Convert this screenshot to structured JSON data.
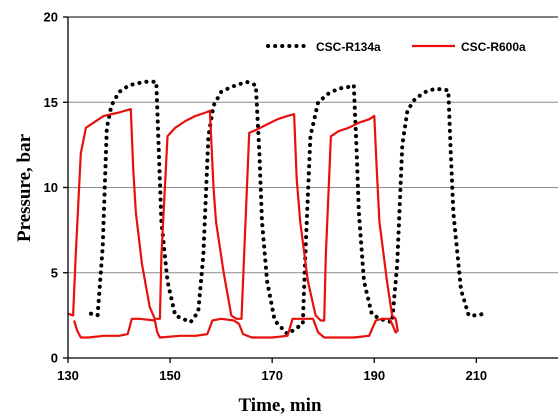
{
  "chart_data": {
    "type": "line",
    "title": "",
    "xlabel": "Time, min",
    "ylabel": "Pressure, bar",
    "xlim": [
      130,
      226
    ],
    "ylim": [
      0,
      20
    ],
    "xticks": [
      130,
      150,
      170,
      190,
      210
    ],
    "yticks": [
      0,
      5,
      10,
      15,
      20
    ],
    "grid": "horizontal",
    "legend_position": "top-right",
    "series": [
      {
        "name": "CSC-R134a",
        "color": "#000000",
        "style": "dotted",
        "points": [
          [
            134.5,
            2.6
          ],
          [
            135.8,
            2.5
          ],
          [
            136.8,
            6.5
          ],
          [
            137.6,
            13.5
          ],
          [
            138.5,
            14.8
          ],
          [
            140,
            15.6
          ],
          [
            142,
            16.0
          ],
          [
            145,
            16.2
          ],
          [
            147.3,
            16.2
          ],
          [
            147.8,
            12.0
          ],
          [
            148.3,
            8.0
          ],
          [
            149.5,
            4.5
          ],
          [
            151,
            2.5
          ],
          [
            154,
            2.1
          ],
          [
            155.5,
            2.7
          ],
          [
            156.5,
            6.0
          ],
          [
            157.5,
            13.0
          ],
          [
            158.5,
            14.8
          ],
          [
            160,
            15.6
          ],
          [
            162,
            15.9
          ],
          [
            165,
            16.2
          ],
          [
            166.8,
            16.0
          ],
          [
            167.5,
            12.0
          ],
          [
            168,
            8.0
          ],
          [
            169,
            4.5
          ],
          [
            170.5,
            2.2
          ],
          [
            173,
            1.4
          ],
          [
            176,
            2.0
          ],
          [
            176.5,
            6.0
          ],
          [
            177.5,
            13.0
          ],
          [
            179,
            15.0
          ],
          [
            181,
            15.5
          ],
          [
            183,
            15.8
          ],
          [
            185,
            15.9
          ],
          [
            186,
            16.0
          ],
          [
            186.5,
            12.5
          ],
          [
            187,
            8.5
          ],
          [
            188,
            4.5
          ],
          [
            189.5,
            2.6
          ],
          [
            191,
            2.3
          ],
          [
            193.5,
            2.1
          ],
          [
            194.5,
            5.5
          ],
          [
            195.5,
            12.5
          ],
          [
            196.5,
            14.5
          ],
          [
            198,
            15.2
          ],
          [
            200,
            15.6
          ],
          [
            202,
            15.8
          ],
          [
            204.5,
            15.7
          ],
          [
            205,
            12.0
          ],
          [
            205.5,
            8.5
          ],
          [
            207,
            4.0
          ],
          [
            208.5,
            2.5
          ],
          [
            210,
            2.5
          ],
          [
            211.5,
            2.6
          ],
          [
            212,
            2.5
          ]
        ]
      },
      {
        "name": "CSC-R600a",
        "color": "#e8100c",
        "style": "solid",
        "points": [
          [
            130,
            2.6
          ],
          [
            131,
            2.5
          ],
          [
            131.5,
            6.0
          ],
          [
            132.5,
            12.0
          ],
          [
            133.5,
            13.5
          ],
          [
            135,
            13.8
          ],
          [
            137,
            14.2
          ],
          [
            140,
            14.4
          ],
          [
            142.3,
            14.6
          ],
          [
            142.8,
            11.0
          ],
          [
            143.3,
            8.5
          ],
          [
            144.5,
            5.5
          ],
          [
            146,
            3.0
          ],
          [
            147,
            2.3
          ],
          [
            148,
            2.3
          ],
          [
            148.3,
            6.0
          ],
          [
            149.5,
            13.0
          ],
          [
            151,
            13.5
          ],
          [
            153,
            13.9
          ],
          [
            155,
            14.2
          ],
          [
            157,
            14.4
          ],
          [
            157.8,
            14.5
          ],
          [
            158.5,
            10.0
          ],
          [
            159,
            8.0
          ],
          [
            160.5,
            5.0
          ],
          [
            162,
            2.5
          ],
          [
            163,
            2.3
          ],
          [
            164,
            2.3
          ],
          [
            164.5,
            6.0
          ],
          [
            165.5,
            13.2
          ],
          [
            167,
            13.4
          ],
          [
            169,
            13.7
          ],
          [
            171,
            14.0
          ],
          [
            173,
            14.2
          ],
          [
            174.3,
            14.3
          ],
          [
            174.8,
            10.5
          ],
          [
            175.5,
            8.0
          ],
          [
            177,
            4.5
          ],
          [
            178.5,
            2.5
          ],
          [
            179.5,
            2.2
          ],
          [
            180.2,
            2.2
          ],
          [
            180.5,
            6.0
          ],
          [
            181.5,
            13.0
          ],
          [
            183,
            13.3
          ],
          [
            185,
            13.5
          ],
          [
            187,
            13.8
          ],
          [
            189,
            14.0
          ],
          [
            190,
            14.2
          ],
          [
            190.5,
            11.0
          ],
          [
            191,
            8.0
          ],
          [
            192.5,
            4.5
          ],
          [
            193.5,
            2.5
          ],
          [
            194.2,
            2.3
          ],
          [
            194.6,
            1.6
          ],
          [
            194.2,
            1.5
          ],
          [
            193.5,
            2.0
          ],
          [
            193,
            2.3
          ],
          [
            191.5,
            2.3
          ],
          [
            190.3,
            2.2
          ],
          [
            189,
            1.3
          ],
          [
            186,
            1.2
          ],
          [
            183,
            1.2
          ],
          [
            180.2,
            1.2
          ],
          [
            179,
            1.5
          ],
          [
            178,
            2.3
          ],
          [
            175,
            2.3
          ],
          [
            174,
            2.3
          ],
          [
            173,
            1.3
          ],
          [
            170,
            1.2
          ],
          [
            166,
            1.2
          ],
          [
            164.3,
            1.4
          ],
          [
            163.5,
            2.0
          ],
          [
            162.5,
            2.2
          ],
          [
            160,
            2.3
          ],
          [
            158.3,
            2.2
          ],
          [
            157.3,
            1.4
          ],
          [
            155,
            1.3
          ],
          [
            152,
            1.3
          ],
          [
            148,
            1.2
          ],
          [
            147.5,
            1.5
          ],
          [
            147,
            2.2
          ],
          [
            144,
            2.3
          ],
          [
            142.5,
            2.3
          ],
          [
            141.7,
            1.4
          ],
          [
            140,
            1.3
          ],
          [
            137,
            1.3
          ],
          [
            134,
            1.2
          ],
          [
            132.5,
            1.2
          ],
          [
            131.8,
            1.6
          ],
          [
            131.2,
            2.2
          ]
        ]
      }
    ]
  }
}
